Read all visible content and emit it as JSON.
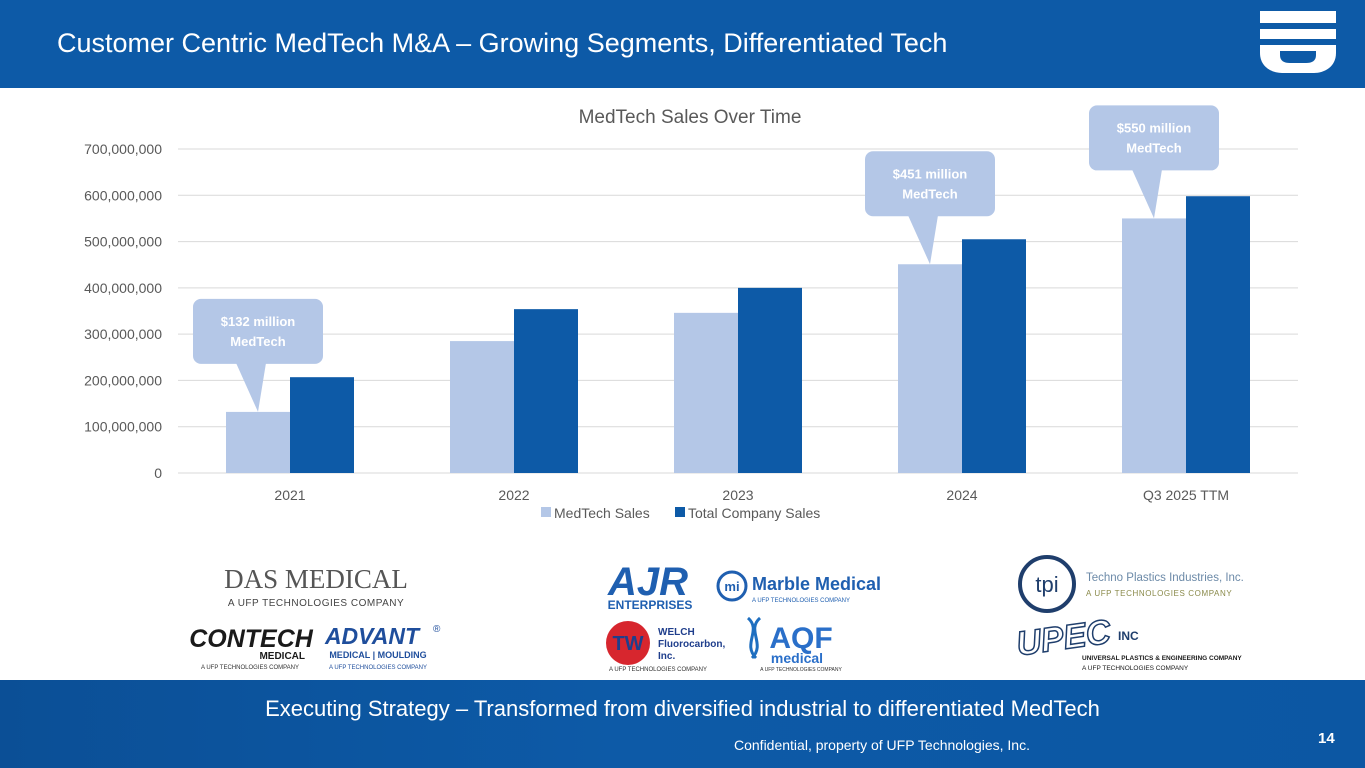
{
  "header": {
    "title": "Customer Centric MedTech M&A – Growing Segments, Differentiated Tech",
    "logo_icon": "ufp-logo-icon"
  },
  "colors": {
    "brand_blue": "#0d5aa7",
    "medtech_bar": "#b4c7e7",
    "total_bar": "#0d5aa7",
    "gridline": "#d9d9d9",
    "axis_text": "#595959"
  },
  "chart_data": {
    "type": "bar",
    "title": "MedTech Sales Over Time",
    "categories": [
      "2021",
      "2022",
      "2023",
      "2024",
      "Q3 2025 TTM"
    ],
    "series": [
      {
        "name": "MedTech Sales",
        "values": [
          132000000,
          285000000,
          346000000,
          451000000,
          550000000
        ]
      },
      {
        "name": "Total Company Sales",
        "values": [
          207000000,
          354000000,
          400000000,
          505000000,
          598000000
        ]
      }
    ],
    "ylim": [
      0,
      700000000
    ],
    "yticks": [
      "0",
      "100,000,000",
      "200,000,000",
      "300,000,000",
      "400,000,000",
      "500,000,000",
      "600,000,000",
      "700,000,000"
    ],
    "xlabel": "",
    "ylabel": "",
    "legend_position": "bottom",
    "callouts": [
      {
        "category": "2021",
        "line1": "$132 million",
        "line2": "MedTech"
      },
      {
        "category": "2024",
        "line1": "$451 million",
        "line2": "MedTech"
      },
      {
        "category": "Q3 2025 TTM",
        "line1": "$550 million",
        "line2": "MedTech"
      }
    ]
  },
  "acquisitions": {
    "das_medical": {
      "name": "DAS MEDICAL",
      "tagline": "A UFP TECHNOLOGIES COMPANY"
    },
    "contech": {
      "name": "CONTECH",
      "sub": "MEDICAL",
      "tagline": "A UFP TECHNOLOGIES COMPANY"
    },
    "advant": {
      "name": "ADVANT",
      "sub": "MEDICAL | MOULDING",
      "tagline": "A UFP TECHNOLOGIES COMPANY",
      "mark": "®"
    },
    "ajr": {
      "name": "AJR",
      "sub": "ENTERPRISES"
    },
    "marble": {
      "icon": "mi",
      "name": "Marble Medical",
      "tagline": "A UFP TECHNOLOGIES COMPANY"
    },
    "welch": {
      "icon": "TW",
      "line1": "WELCH",
      "line2": "Fluorocarbon,",
      "line3": "Inc.",
      "tagline": "A UFP TECHNOLOGIES COMPANY"
    },
    "aqf": {
      "name": "AQF",
      "sub": "medical",
      "tagline": "A UFP TECHNOLOGIES COMPANY"
    },
    "tpi": {
      "icon": "tpi",
      "name": "Techno Plastics Industries, Inc.",
      "tagline": "A UFP TECHNOLOGIES COMPANY"
    },
    "upec": {
      "name": "UPEC",
      "suffix": "INC",
      "line1": "UNIVERSAL PLASTICS & ENGINEERING COMPANY",
      "tagline": "A UFP TECHNOLOGIES COMPANY"
    }
  },
  "footer": {
    "tagline": "Executing Strategy – Transformed from diversified industrial to differentiated MedTech",
    "confidential": "Confidential, property of UFP Technologies, Inc.",
    "page_number": "14"
  }
}
